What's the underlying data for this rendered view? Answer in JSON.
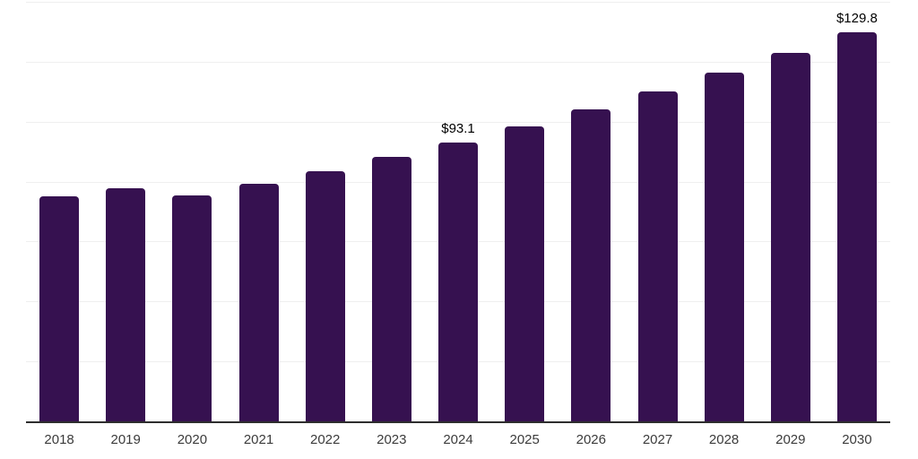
{
  "chart_data": {
    "type": "bar",
    "title": "",
    "xlabel": "",
    "ylabel": "",
    "categories": [
      "2018",
      "2019",
      "2020",
      "2021",
      "2022",
      "2023",
      "2024",
      "2025",
      "2026",
      "2027",
      "2028",
      "2029",
      "2030"
    ],
    "values": [
      75.2,
      77.8,
      75.4,
      79.3,
      83.5,
      88.2,
      93.1,
      98.4,
      104.0,
      110.0,
      116.3,
      122.9,
      129.8
    ],
    "annotations": [
      {
        "category": "2024",
        "label": "$93.1"
      },
      {
        "category": "2030",
        "label": "$129.8"
      }
    ],
    "ylim": [
      0,
      140
    ],
    "grid_step": 20,
    "grid": true,
    "legend_position": "none",
    "colors": {
      "bar": "#361150",
      "gridline": "#efefef",
      "axis_line": "#2e2e2e",
      "tick_label": "#3b3b3b",
      "annotation": "#000000",
      "background": "#ffffff"
    }
  }
}
